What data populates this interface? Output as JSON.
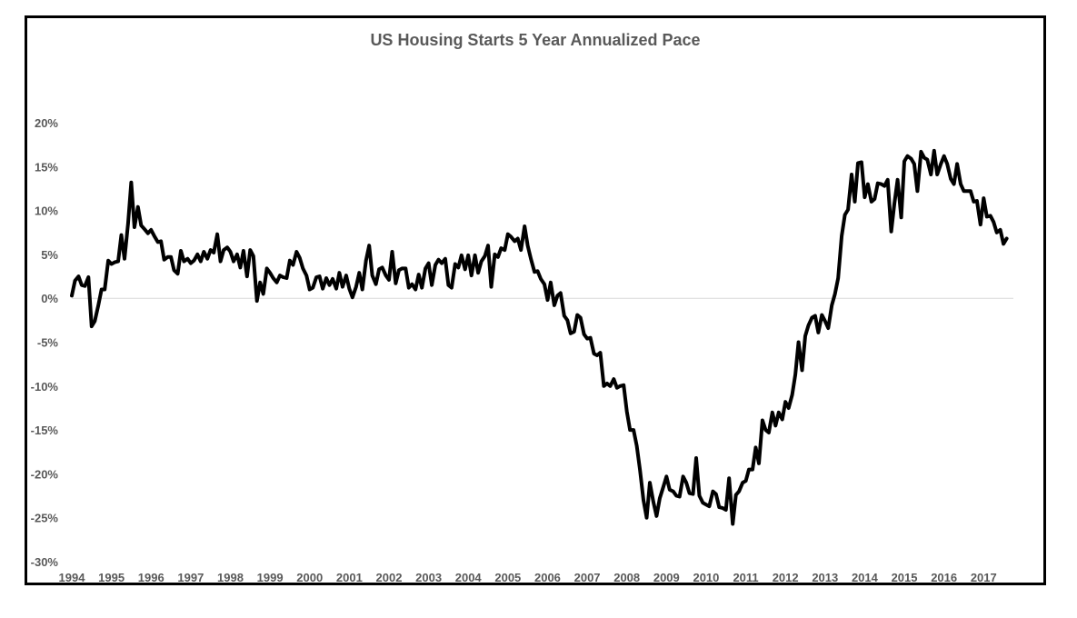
{
  "chart_data": {
    "type": "line",
    "title": "US Housing Starts 5 Year Annualized Pace",
    "xlabel": "",
    "ylabel": "",
    "x_ticks": [
      "1994",
      "1995",
      "1996",
      "1997",
      "1998",
      "1999",
      "2000",
      "2001",
      "2002",
      "2003",
      "2004",
      "2005",
      "2006",
      "2007",
      "2008",
      "2009",
      "2010",
      "2011",
      "2012",
      "2013",
      "2014",
      "2015",
      "2016",
      "2017"
    ],
    "y_ticks": [
      "20%",
      "15%",
      "10%",
      "5%",
      "0%",
      "-5%",
      "-10%",
      "-15%",
      "-20%",
      "-25%",
      "-30%"
    ],
    "xlim": [
      1994.0,
      2017.75
    ],
    "ylim": [
      -30,
      20
    ],
    "y_unit": "%",
    "grid": false,
    "zero_line": true,
    "line_color": "#000000",
    "series": [
      {
        "x": [
          1994.0,
          1994.08,
          1994.17,
          1994.25,
          1994.33,
          1994.42,
          1994.5,
          1994.58,
          1994.67,
          1994.75,
          1994.83,
          1994.92,
          1995.0,
          1995.08,
          1995.17,
          1995.25,
          1995.33,
          1995.42,
          1995.5,
          1995.58,
          1995.67,
          1995.75,
          1995.83,
          1995.92,
          1996.0,
          1996.08,
          1996.17,
          1996.25,
          1996.33,
          1996.42,
          1996.5,
          1996.58,
          1996.67,
          1996.75,
          1996.83,
          1996.92,
          1997.0,
          1997.08,
          1997.17,
          1997.25,
          1997.33,
          1997.42,
          1997.5,
          1997.58,
          1997.67,
          1997.75,
          1997.83,
          1997.92,
          1998.0,
          1998.08,
          1998.17,
          1998.25,
          1998.33,
          1998.42,
          1998.5,
          1998.58,
          1998.67,
          1998.75,
          1998.83,
          1998.92,
          1999.0,
          1999.08,
          1999.17,
          1999.25,
          1999.33,
          1999.42,
          1999.5,
          1999.58,
          1999.67,
          1999.75,
          1999.83,
          1999.92,
          2000.0,
          2000.08,
          2000.17,
          2000.25,
          2000.33,
          2000.42,
          2000.5,
          2000.58,
          2000.67,
          2000.75,
          2000.83,
          2000.92,
          2001.0,
          2001.08,
          2001.17,
          2001.25,
          2001.33,
          2001.42,
          2001.5,
          2001.58,
          2001.67,
          2001.75,
          2001.83,
          2001.92,
          2002.0,
          2002.08,
          2002.17,
          2002.25,
          2002.33,
          2002.42,
          2002.5,
          2002.58,
          2002.67,
          2002.75,
          2002.83,
          2002.92,
          2003.0,
          2003.08,
          2003.17,
          2003.25,
          2003.33,
          2003.42,
          2003.5,
          2003.58,
          2003.67,
          2003.75,
          2003.83,
          2003.92,
          2004.0,
          2004.08,
          2004.17,
          2004.25,
          2004.33,
          2004.42,
          2004.5,
          2004.58,
          2004.67,
          2004.75,
          2004.83,
          2004.92,
          2005.0,
          2005.08,
          2005.17,
          2005.25,
          2005.33,
          2005.42,
          2005.5,
          2005.58,
          2005.67,
          2005.75,
          2005.83,
          2005.92,
          2006.0,
          2006.08,
          2006.17,
          2006.25,
          2006.33,
          2006.42,
          2006.5,
          2006.58,
          2006.67,
          2006.75,
          2006.83,
          2006.92,
          2007.0,
          2007.08,
          2007.17,
          2007.25,
          2007.33,
          2007.42,
          2007.5,
          2007.58,
          2007.67,
          2007.75,
          2007.83,
          2007.92,
          2008.0,
          2008.08,
          2008.17,
          2008.25,
          2008.33,
          2008.42,
          2008.5,
          2008.58,
          2008.67,
          2008.75,
          2008.83,
          2008.92,
          2009.0,
          2009.08,
          2009.17,
          2009.25,
          2009.33,
          2009.42,
          2009.5,
          2009.58,
          2009.67,
          2009.75,
          2009.83,
          2009.92,
          2010.0,
          2010.08,
          2010.17,
          2010.25,
          2010.33,
          2010.42,
          2010.5,
          2010.58,
          2010.67,
          2010.75,
          2010.83,
          2010.92,
          2011.0,
          2011.08,
          2011.17,
          2011.25,
          2011.33,
          2011.42,
          2011.5,
          2011.58,
          2011.67,
          2011.75,
          2011.83,
          2011.92,
          2012.0,
          2012.08,
          2012.17,
          2012.25,
          2012.33,
          2012.42,
          2012.5,
          2012.58,
          2012.67,
          2012.75,
          2012.83,
          2012.92,
          2013.0,
          2013.08,
          2013.17,
          2013.25,
          2013.33,
          2013.42,
          2013.5,
          2013.58,
          2013.67,
          2013.75,
          2013.83,
          2013.92,
          2014.0,
          2014.08,
          2014.17,
          2014.25,
          2014.33,
          2014.42,
          2014.5,
          2014.58,
          2014.67,
          2014.75,
          2014.83,
          2014.92,
          2015.0,
          2015.08,
          2015.17,
          2015.25,
          2015.33,
          2015.42,
          2015.5,
          2015.58,
          2015.67,
          2015.75,
          2015.83,
          2015.92,
          2016.0,
          2016.08,
          2016.17,
          2016.25,
          2016.33,
          2016.42,
          2016.5,
          2016.58,
          2016.67,
          2016.75,
          2016.83,
          2016.92,
          2017.0,
          2017.08,
          2017.17,
          2017.25,
          2017.33,
          2017.42,
          2017.5,
          2017.58
        ],
        "values": [
          0.3,
          2.0,
          2.5,
          1.5,
          1.4,
          2.4,
          -3.2,
          -2.6,
          -0.8,
          1.0,
          1.0,
          4.3,
          3.9,
          4.1,
          4.2,
          7.2,
          4.5,
          8.5,
          13.2,
          8.1,
          10.4,
          8.3,
          7.9,
          7.4,
          7.8,
          7.1,
          6.4,
          6.5,
          4.4,
          4.7,
          4.7,
          3.2,
          2.8,
          5.4,
          4.2,
          4.5,
          4.0,
          4.3,
          5.0,
          4.2,
          5.3,
          4.5,
          5.5,
          5.2,
          7.3,
          4.2,
          5.5,
          5.8,
          5.3,
          4.2,
          5.0,
          3.5,
          5.4,
          2.5,
          5.5,
          4.8,
          -0.3,
          1.8,
          0.5,
          3.4,
          2.9,
          2.3,
          1.8,
          2.6,
          2.4,
          2.3,
          4.3,
          3.8,
          5.3,
          4.6,
          3.4,
          2.6,
          1.0,
          1.2,
          2.4,
          2.5,
          1.1,
          2.3,
          1.5,
          2.2,
          1.1,
          2.9,
          1.3,
          2.6,
          1.1,
          0.1,
          1.3,
          2.9,
          1.0,
          4.3,
          6.0,
          2.6,
          1.6,
          3.3,
          3.5,
          2.6,
          2.1,
          5.3,
          1.7,
          3.2,
          3.4,
          3.4,
          1.2,
          1.6,
          1.0,
          2.7,
          1.2,
          3.4,
          4.0,
          1.5,
          3.8,
          4.4,
          4.0,
          4.5,
          1.5,
          1.2,
          3.9,
          3.5,
          4.9,
          3.3,
          4.9,
          2.6,
          4.9,
          2.9,
          4.2,
          4.8,
          6.0,
          1.3,
          5.0,
          4.7,
          5.7,
          5.5,
          7.3,
          7.0,
          6.5,
          6.8,
          5.5,
          8.2,
          6.0,
          4.5,
          3.0,
          3.1,
          2.2,
          1.6,
          -0.2,
          1.8,
          -0.8,
          0.3,
          0.6,
          -2.0,
          -2.5,
          -4.0,
          -3.8,
          -1.9,
          -2.2,
          -4.1,
          -4.6,
          -4.5,
          -6.3,
          -6.5,
          -6.2,
          -10.0,
          -9.7,
          -10.0,
          -9.2,
          -10.2,
          -10.0,
          -9.9,
          -12.9,
          -15.0,
          -15.0,
          -16.8,
          -19.5,
          -23.0,
          -25.0,
          -21.0,
          -23.2,
          -24.8,
          -22.8,
          -21.5,
          -20.3,
          -21.8,
          -22.0,
          -22.5,
          -22.6,
          -20.3,
          -21.0,
          -22.2,
          -22.3,
          -18.2,
          -22.5,
          -23.3,
          -23.5,
          -23.7,
          -22.0,
          -22.3,
          -23.8,
          -23.9,
          -24.1,
          -20.5,
          -25.7,
          -22.4,
          -22.0,
          -21.0,
          -20.8,
          -19.5,
          -19.5,
          -17.0,
          -18.8,
          -13.9,
          -15.0,
          -15.3,
          -13.0,
          -14.5,
          -13.0,
          -13.8,
          -11.8,
          -12.5,
          -11.0,
          -8.7,
          -5.0,
          -8.2,
          -4.3,
          -3.1,
          -2.2,
          -2.0,
          -3.9,
          -1.9,
          -2.6,
          -3.4,
          -0.8,
          0.5,
          2.3,
          7.1,
          9.5,
          10.1,
          14.1,
          11.0,
          15.4,
          15.5,
          11.5,
          13.0,
          11.0,
          11.3,
          13.1,
          13.0,
          12.8,
          13.5,
          7.6,
          10.8,
          13.5,
          9.2,
          15.6,
          16.2,
          15.9,
          15.3,
          12.2,
          16.7,
          16.0,
          15.8,
          14.1,
          16.8,
          14.1,
          15.3,
          16.2,
          15.3,
          13.6,
          13.0,
          15.3,
          13.0,
          12.2,
          12.2,
          12.2,
          11.0,
          11.1,
          8.4,
          11.4,
          9.3,
          9.4,
          8.7,
          7.5,
          7.8,
          6.2,
          6.8
        ]
      }
    ]
  }
}
